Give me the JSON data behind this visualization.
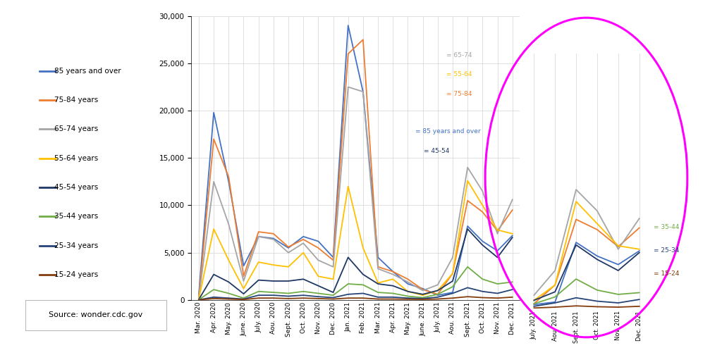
{
  "months": [
    "Mar. 2020",
    "Apr. 2020",
    "May. 2020",
    "June. 2020",
    "July. 2020",
    "Aou. 2020",
    "Sept. 2020",
    "Oct. 2020",
    "Nov. 2020",
    "Dec. 2020",
    "Jan. 2021",
    "Feb. 2021",
    "Mar. 2021",
    "Apr. 2021",
    "May. 2021",
    "June. 2021",
    "July. 2021",
    "Aou. 2021",
    "Sept. 2021",
    "Oct. 2021",
    "Nov. 2021",
    "Dec. 2021"
  ],
  "series": {
    "85 years and over": {
      "color": "#4472C4",
      "values": [
        600,
        19800,
        12500,
        3600,
        6700,
        6500,
        5500,
        6700,
        6200,
        4500,
        29000,
        22000,
        4500,
        3000,
        1700,
        1200,
        500,
        800,
        7800,
        6200,
        5200,
        6800
      ]
    },
    "75-84 years": {
      "color": "#ED7D31",
      "values": [
        300,
        17000,
        13000,
        2500,
        7200,
        7000,
        5600,
        6400,
        5500,
        4200,
        26000,
        27500,
        3500,
        3000,
        2200,
        1100,
        600,
        2800,
        10500,
        9300,
        7300,
        9500
      ]
    },
    "65-74 years": {
      "color": "#A5A5A5",
      "values": [
        200,
        12500,
        8000,
        2000,
        6700,
        6400,
        5000,
        6000,
        4200,
        3500,
        22500,
        22000,
        3300,
        2700,
        1900,
        1000,
        1600,
        4500,
        14000,
        11500,
        7000,
        10600
      ]
    },
    "55-64 years": {
      "color": "#FFC000",
      "values": [
        100,
        7500,
        4200,
        1200,
        4000,
        3700,
        3500,
        5000,
        2500,
        2200,
        12000,
        5500,
        1800,
        2200,
        900,
        500,
        1000,
        2800,
        12600,
        10000,
        7400,
        7000
      ]
    },
    "45-54 years": {
      "color": "#203864",
      "values": [
        50,
        2700,
        1900,
        650,
        2100,
        2000,
        2000,
        2200,
        1500,
        800,
        4500,
        2700,
        1700,
        1500,
        900,
        600,
        1000,
        2000,
        7500,
        5800,
        4500,
        6600
      ]
    },
    "35-44 years": {
      "color": "#70AD47",
      "values": [
        30,
        1100,
        700,
        200,
        900,
        800,
        700,
        900,
        700,
        500,
        1700,
        1600,
        800,
        700,
        400,
        250,
        600,
        1400,
        3500,
        2200,
        1700,
        1900
      ]
    },
    "25-34 years": {
      "color": "#264478",
      "values": [
        20,
        300,
        200,
        100,
        500,
        500,
        400,
        500,
        350,
        250,
        600,
        700,
        300,
        300,
        200,
        150,
        300,
        700,
        1300,
        900,
        700,
        1100
      ]
    },
    "15-24 years": {
      "color": "#843C0C",
      "values": [
        10,
        150,
        100,
        50,
        200,
        200,
        150,
        200,
        150,
        100,
        200,
        200,
        100,
        100,
        80,
        60,
        100,
        200,
        350,
        250,
        200,
        300
      ]
    }
  },
  "series_order": [
    "85 years and over",
    "75-84 years",
    "65-74 years",
    "55-64 years",
    "45-54 years",
    "35-44 years",
    "25-34 years",
    "15-24 years"
  ],
  "ylim": [
    0,
    30000
  ],
  "yticks": [
    0,
    5000,
    10000,
    15000,
    20000,
    25000,
    30000
  ],
  "background_color": "#FFFFFF",
  "grid_color": "#D3D3D3",
  "source_text": "Source: wonder.cdc.gov",
  "inset_months": [
    "July. 2021",
    "Aou. 2021",
    "Sept. 2021",
    "Oct. 2021",
    "Nov. 2021",
    "Dec. 2021"
  ],
  "ellipse_color": "#FF00FF",
  "left_legend_items": [
    [
      "85 years and over",
      "#4472C4"
    ],
    [
      "75-84 years",
      "#ED7D31"
    ],
    [
      "65-74 years",
      "#A5A5A5"
    ],
    [
      "55-64 years",
      "#FFC000"
    ],
    [
      "45-54 years",
      "#203864"
    ],
    [
      "35-44 years",
      "#70AD47"
    ],
    [
      "25-34 years",
      "#264478"
    ],
    [
      "15-24 years",
      "#843C0C"
    ]
  ],
  "inset_legend_top": [
    [
      "65-74",
      "#A5A5A5"
    ],
    [
      "55-64",
      "#FFC000"
    ],
    [
      "75-84",
      "#ED7D31"
    ]
  ],
  "inset_legend_mid_left": [
    [
      "85 years and over",
      "#4472C4"
    ],
    [
      "45-54",
      "#203864"
    ]
  ],
  "inset_legend_bot_right": [
    [
      "35-44",
      "#70AD47"
    ],
    [
      "25-34",
      "#264478"
    ],
    [
      "15-24",
      "#843C0C"
    ]
  ]
}
